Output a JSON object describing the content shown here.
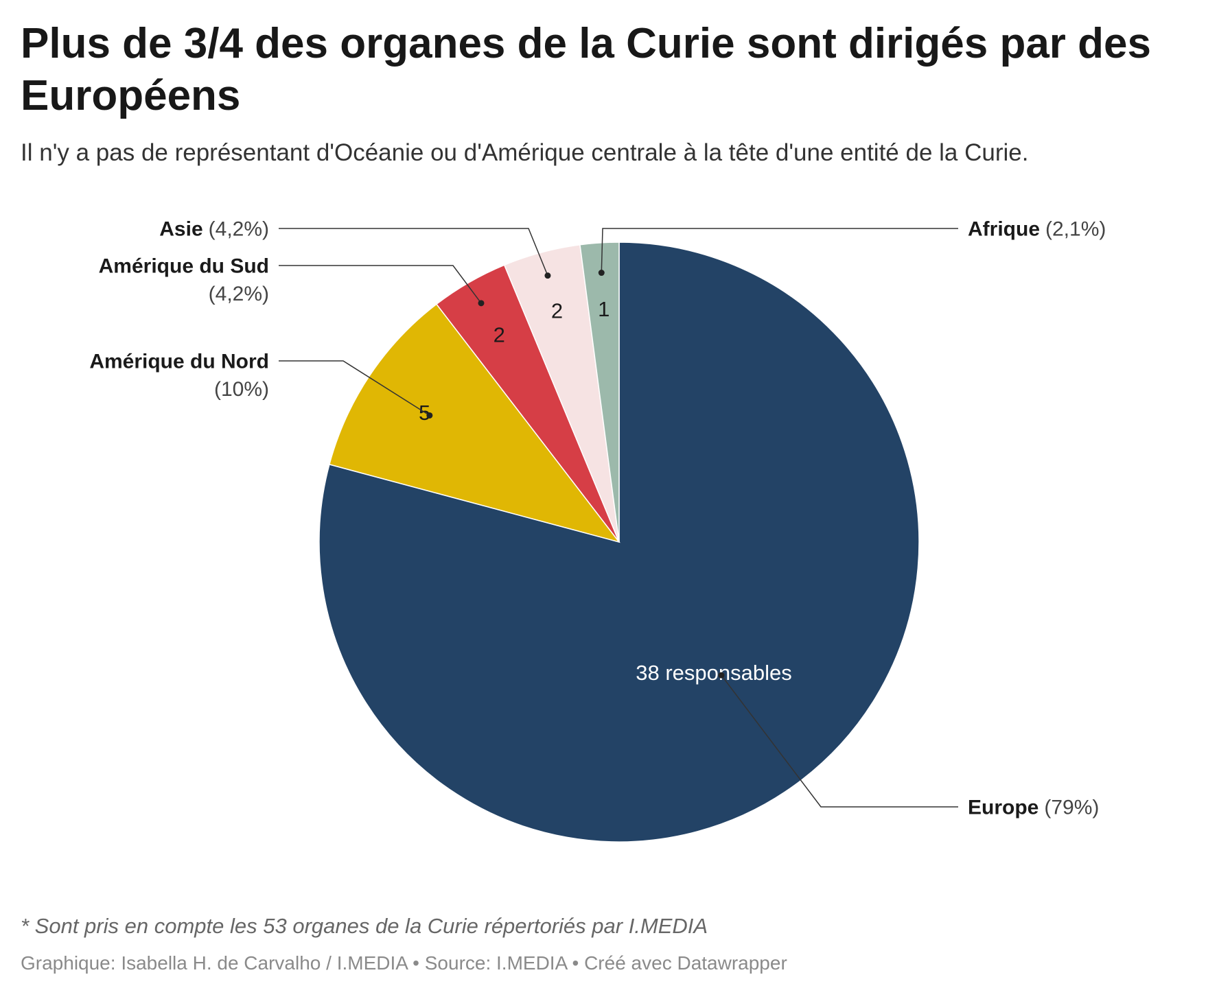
{
  "chart_data": {
    "type": "pie",
    "title": "Plus de 3/4 des organes de la Curie sont dirigés par des Européens",
    "subtitle": "Il n'y a pas de représentant d'Océanie ou d'Amérique centrale à la tête d'une entité de la Curie.",
    "slices": [
      {
        "category": "Europe",
        "value": 38,
        "percent_label": "(79%)",
        "value_label": "38 responsables",
        "color": "#234366",
        "label_color": "#ffffff"
      },
      {
        "category": "Amérique du Nord",
        "value": 5,
        "percent_label": "(10%)",
        "value_label": "5",
        "color": "#e0b704",
        "label_color": "#1a1a1a"
      },
      {
        "category": "Amérique du Sud",
        "value": 2,
        "percent_label": "(4,2%)",
        "value_label": "2",
        "color": "#d63e46",
        "label_color": "#1a1a1a"
      },
      {
        "category": "Asie",
        "value": 2,
        "percent_label": "(4,2%)",
        "value_label": "2",
        "color": "#f6e3e3",
        "label_color": "#1a1a1a"
      },
      {
        "category": "Afrique",
        "value": 1,
        "percent_label": "(2,1%)",
        "value_label": "1",
        "color": "#9cb9ab",
        "label_color": "#1a1a1a"
      }
    ],
    "notes": "* Sont pris en compte les 53 organes de la Curie répertoriés par I.MEDIA",
    "footer": "Graphique: Isabella H. de Carvalho / I.MEDIA • Source: I.MEDIA • Créé avec Datawrapper"
  }
}
